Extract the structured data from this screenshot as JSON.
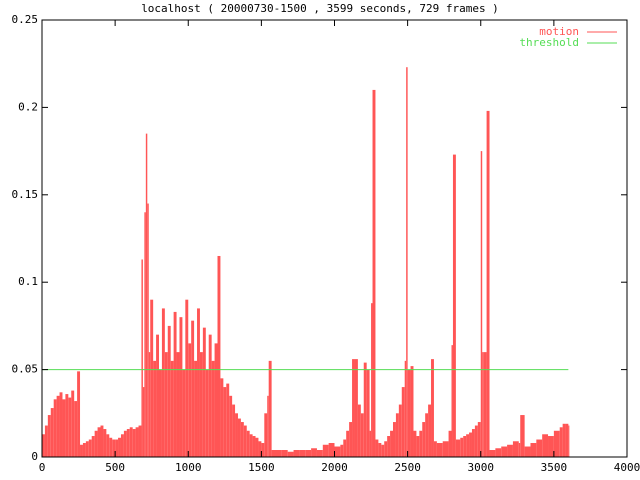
{
  "chart_data": {
    "type": "impulse",
    "title": "localhost ( 20000730-1500 , 3599 seconds, 729 frames )",
    "xlim": [
      0,
      4000
    ],
    "xticks": [
      0,
      500,
      1000,
      1500,
      2000,
      2500,
      3000,
      3500,
      4000
    ],
    "ylim": [
      0,
      0.25
    ],
    "yticks": [
      0,
      0.05,
      0.1,
      0.15,
      0.2,
      0.25
    ],
    "legend": "top right",
    "series": [
      {
        "name": "motion",
        "color": "#ff5555",
        "style": "impulses",
        "x": [
          0,
          20,
          40,
          60,
          80,
          100,
          120,
          140,
          160,
          180,
          200,
          220,
          240,
          260,
          280,
          300,
          320,
          340,
          360,
          380,
          400,
          420,
          440,
          460,
          480,
          500,
          520,
          540,
          560,
          580,
          600,
          620,
          640,
          660,
          680,
          690,
          700,
          710,
          720,
          730,
          740,
          760,
          780,
          800,
          820,
          840,
          860,
          880,
          900,
          920,
          940,
          960,
          980,
          1000,
          1020,
          1040,
          1060,
          1080,
          1100,
          1120,
          1140,
          1160,
          1180,
          1200,
          1220,
          1240,
          1260,
          1280,
          1300,
          1320,
          1340,
          1360,
          1380,
          1400,
          1420,
          1440,
          1460,
          1480,
          1500,
          1520,
          1540,
          1550,
          1570,
          1600,
          1640,
          1680,
          1720,
          1760,
          1800,
          1840,
          1880,
          1920,
          1960,
          2000,
          2040,
          2060,
          2080,
          2100,
          2120,
          2140,
          2160,
          2180,
          2200,
          2220,
          2240,
          2250,
          2260,
          2280,
          2300,
          2320,
          2340,
          2360,
          2380,
          2400,
          2420,
          2440,
          2460,
          2480,
          2490,
          2500,
          2520,
          2540,
          2560,
          2580,
          2600,
          2620,
          2640,
          2660,
          2680,
          2700,
          2740,
          2780,
          2800,
          2810,
          2830,
          2860,
          2880,
          2900,
          2920,
          2940,
          2960,
          2980,
          3000,
          3010,
          3020,
          3040,
          3060,
          3100,
          3140,
          3180,
          3220,
          3260,
          3270,
          3300,
          3340,
          3380,
          3420,
          3460,
          3500,
          3540,
          3560,
          3580,
          3599
        ],
        "values": [
          0.013,
          0.018,
          0.024,
          0.028,
          0.033,
          0.035,
          0.037,
          0.033,
          0.036,
          0.034,
          0.038,
          0.032,
          0.049,
          0.007,
          0.008,
          0.009,
          0.01,
          0.012,
          0.015,
          0.017,
          0.018,
          0.016,
          0.013,
          0.011,
          0.01,
          0.01,
          0.011,
          0.013,
          0.015,
          0.016,
          0.017,
          0.016,
          0.017,
          0.018,
          0.113,
          0.04,
          0.14,
          0.185,
          0.145,
          0.06,
          0.09,
          0.055,
          0.07,
          0.05,
          0.085,
          0.06,
          0.075,
          0.055,
          0.083,
          0.06,
          0.08,
          0.05,
          0.09,
          0.065,
          0.078,
          0.055,
          0.085,
          0.06,
          0.074,
          0.05,
          0.07,
          0.055,
          0.065,
          0.115,
          0.045,
          0.04,
          0.042,
          0.035,
          0.03,
          0.025,
          0.022,
          0.02,
          0.018,
          0.015,
          0.013,
          0.012,
          0.011,
          0.009,
          0.008,
          0.025,
          0.035,
          0.055,
          0.004,
          0.004,
          0.004,
          0.003,
          0.004,
          0.004,
          0.004,
          0.005,
          0.004,
          0.007,
          0.008,
          0.006,
          0.007,
          0.01,
          0.015,
          0.02,
          0.056,
          0.056,
          0.03,
          0.025,
          0.054,
          0.05,
          0.015,
          0.088,
          0.21,
          0.01,
          0.008,
          0.007,
          0.009,
          0.012,
          0.015,
          0.02,
          0.025,
          0.03,
          0.04,
          0.055,
          0.223,
          0.05,
          0.052,
          0.015,
          0.012,
          0.015,
          0.02,
          0.025,
          0.03,
          0.056,
          0.009,
          0.008,
          0.009,
          0.015,
          0.064,
          0.173,
          0.01,
          0.011,
          0.012,
          0.013,
          0.014,
          0.016,
          0.018,
          0.02,
          0.175,
          0.06,
          0.06,
          0.198,
          0.004,
          0.005,
          0.006,
          0.007,
          0.009,
          0.008,
          0.024,
          0.006,
          0.008,
          0.01,
          0.013,
          0.012,
          0.015,
          0.017,
          0.019,
          0.019,
          0.018
        ]
      },
      {
        "name": "threshold",
        "color": "#55dd55",
        "style": "line",
        "x": [
          0,
          3599
        ],
        "values": [
          0.05,
          0.05
        ]
      }
    ]
  }
}
